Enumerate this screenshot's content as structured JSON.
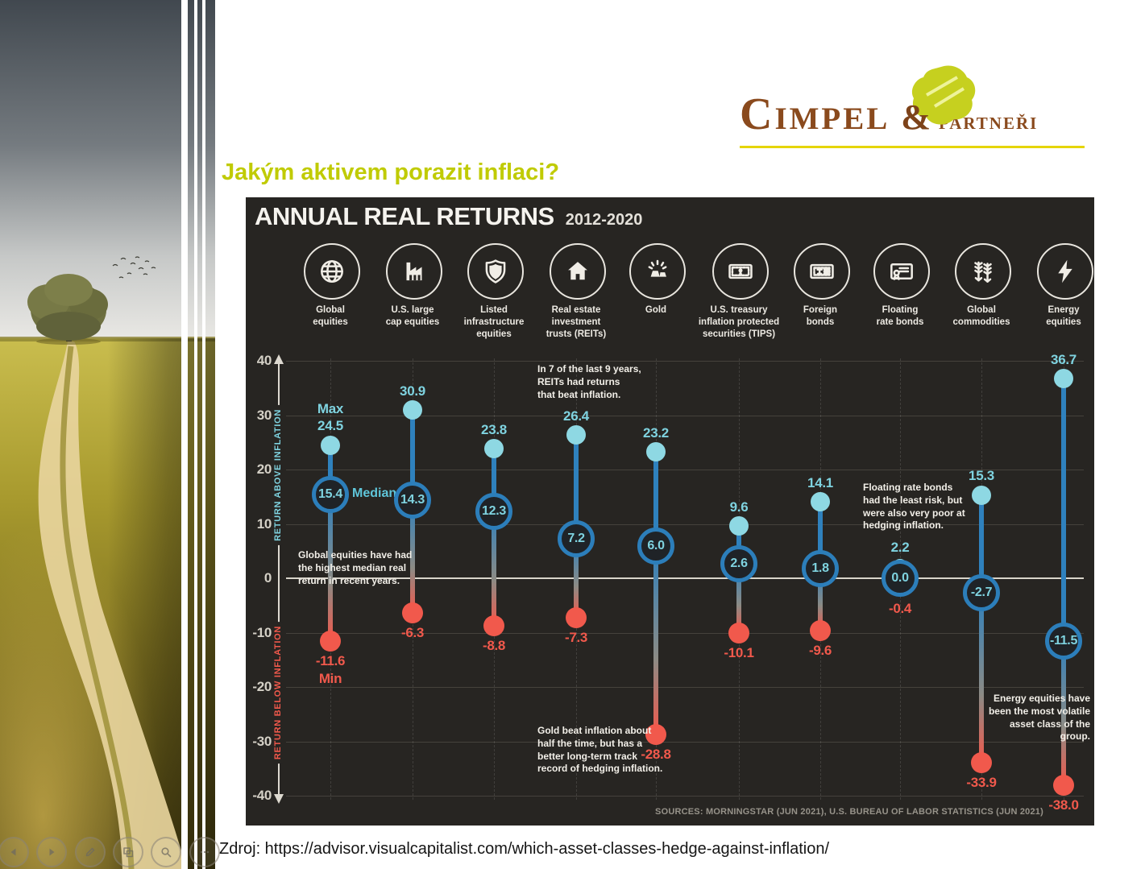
{
  "slide": {
    "title": "Jakým aktivem porazit inflaci?",
    "source_line": "Zdroj: https://advisor.visualcapitalist.com/which-asset-classes-hedge-against-inflation/"
  },
  "logo": {
    "word1": "Cimpel",
    "ampersand": "&",
    "word2": "partneři",
    "brown": "#8a4a1d",
    "yellow_green": "#c6d01f",
    "underline_yellow": "#e5d502"
  },
  "toolbar": {
    "buttons": [
      {
        "name": "previous-slide",
        "icon": "arrow-left-icon"
      },
      {
        "name": "next-slide",
        "icon": "arrow-right-icon"
      },
      {
        "name": "pen-tools",
        "icon": "pen-icon"
      },
      {
        "name": "see-all-slides",
        "icon": "slides-icon"
      },
      {
        "name": "zoom-slide",
        "icon": "magnifier-icon"
      },
      {
        "name": "more-options",
        "icon": "ellipsis-icon"
      }
    ]
  },
  "chart_data": {
    "type": "range-dot",
    "title": "ANNUAL REAL RETURNS",
    "subtitle": "2012-2020",
    "ylabel_above": "RETURN ABOVE INFLATION",
    "ylabel_below": "RETURN BELOW INFLATION",
    "ylim": [
      -40,
      40
    ],
    "yticks": [
      40,
      30,
      20,
      10,
      0,
      -10,
      -20,
      -30,
      -40
    ],
    "legend": {
      "max": "Max",
      "median": "Median",
      "min": "Min"
    },
    "series": [
      {
        "label": "Global\nequities",
        "icon": "globe-icon",
        "max": "24.5",
        "median": "15.4",
        "min": "-11.6"
      },
      {
        "label": "U.S. large\ncap equities",
        "icon": "factory-icon",
        "max": "30.9",
        "median": "14.3",
        "min": "-6.3"
      },
      {
        "label": "Listed\ninfrastructure\nequities",
        "icon": "shield-icon",
        "max": "23.8",
        "median": "12.3",
        "min": "-8.8"
      },
      {
        "label": "Real estate\ninvestment\ntrusts (REITs)",
        "icon": "house-icon",
        "max": "26.4",
        "median": "7.2",
        "min": "-7.3"
      },
      {
        "label": "Gold",
        "icon": "gold-bars-icon",
        "max": "23.2",
        "median": "6.0",
        "min": "-28.8"
      },
      {
        "label": "U.S. treasury\ninflation protected\nsecurities (TIPS)",
        "icon": "banknote-lock-icon",
        "max": "9.6",
        "median": "2.6",
        "min": "-10.1"
      },
      {
        "label": "Foreign\nbonds",
        "icon": "banknote-foreign-icon",
        "max": "14.1",
        "median": "1.8",
        "min": "-9.6"
      },
      {
        "label": "Floating\nrate bonds",
        "icon": "certificate-icon",
        "max": "2.2",
        "median": "0.0",
        "min": "-0.4"
      },
      {
        "label": "Global\ncommodities",
        "icon": "wheat-icon",
        "max": "15.3",
        "median": "-2.7",
        "min": "-33.9"
      },
      {
        "label": "Energy\nequities",
        "icon": "lightning-icon",
        "max": "36.7",
        "median": "-11.5",
        "min": "-38.0"
      }
    ],
    "annotations": [
      {
        "id": "global-equities",
        "text": "Global equities have had\nthe highest median real\nreturn in recent years."
      },
      {
        "id": "reits",
        "text": "In 7 of the last 9 years,\nREITs had returns\nthat beat inflation."
      },
      {
        "id": "gold",
        "text": "Gold beat inflation about\nhalf the time, but has a\nbetter long-term track\nrecord of hedging inflation."
      },
      {
        "id": "floating-rate-bonds",
        "text": "Floating rate bonds\nhad the least risk, but\nwere also very poor at\nhedging inflation."
      },
      {
        "id": "energy-equities",
        "text": "Energy equities have\nbeen the most volatile\nasset class of the group."
      }
    ],
    "sources": "SOURCES: MORNINGSTAR (JUN 2021), U.S. BUREAU OF LABOR STATISTICS (JUN 2021)",
    "colors": {
      "panel_background": "#272522",
      "max_dot": "#8ed8e3",
      "median_ring": "#2c7eba",
      "median_text": "#7fd3e0",
      "min_dot": "#f1594c",
      "line_blue": "#2f81bd",
      "above_axis_label": "#7fd3e0",
      "below_axis_label": "#f1594c"
    }
  }
}
